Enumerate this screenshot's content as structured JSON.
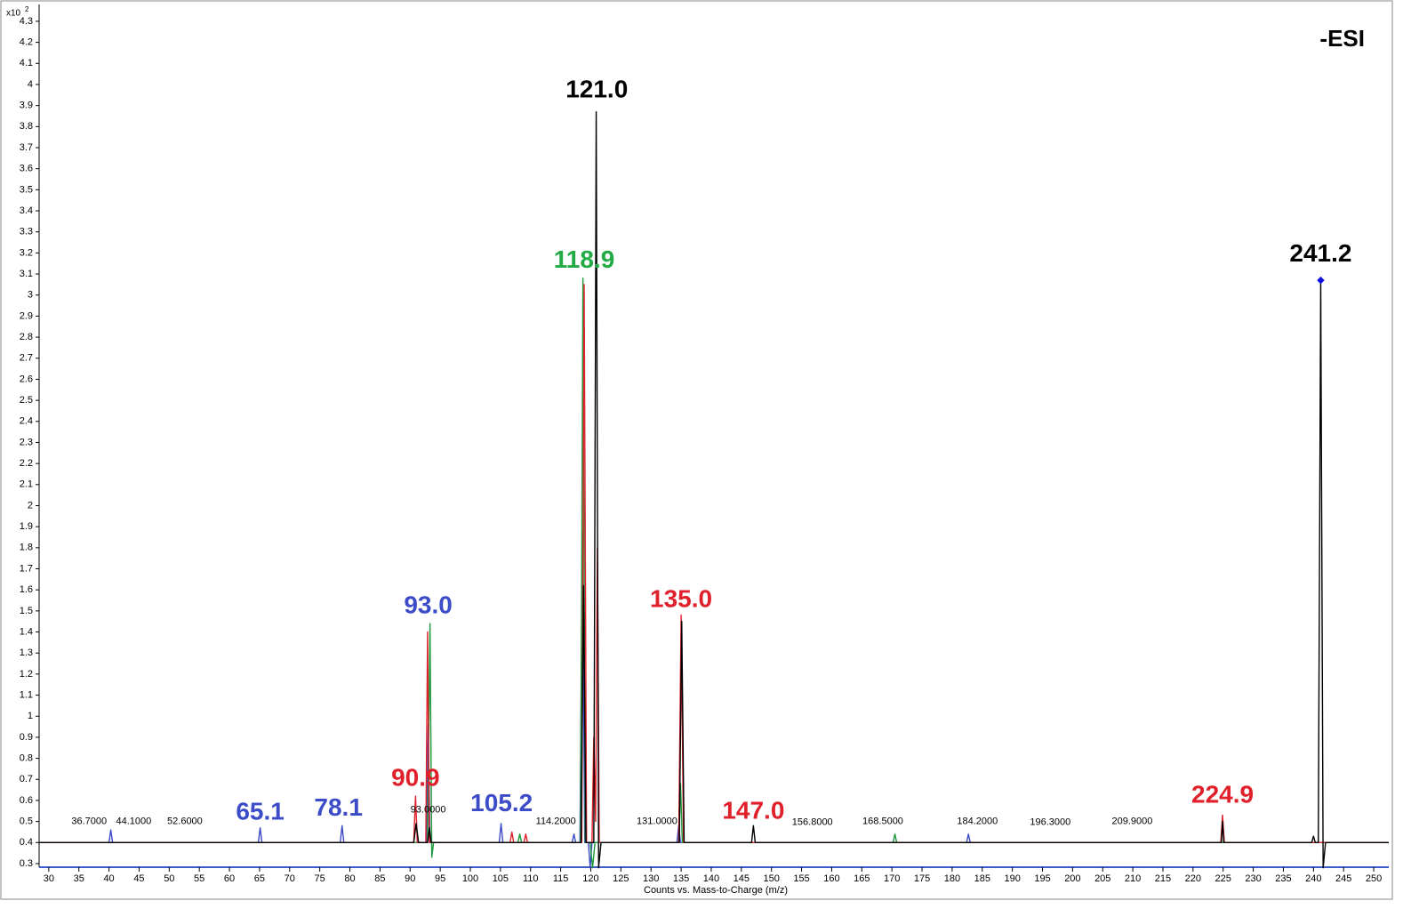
{
  "chart_data": {
    "type": "line",
    "x_label": "Counts vs. Mass-to-Charge (m/z)",
    "y_scale_base": "x10",
    "y_scale_exponent": "2",
    "mode_label": "-ESI",
    "xlim": [
      28.4,
      252.5
    ],
    "ylim": [
      0.283,
      4.38
    ],
    "xticks": [
      30,
      35,
      40,
      45,
      50,
      55,
      60,
      65,
      70,
      75,
      80,
      85,
      90,
      95,
      100,
      105,
      110,
      115,
      120,
      125,
      130,
      135,
      140,
      145,
      150,
      155,
      160,
      165,
      170,
      175,
      180,
      185,
      190,
      195,
      200,
      205,
      210,
      215,
      220,
      225,
      230,
      235,
      240,
      245,
      250
    ],
    "yticks": [
      0.3,
      0.4,
      0.5,
      0.6,
      0.7,
      0.8,
      0.9,
      1,
      1.1,
      1.2,
      1.3,
      1.4,
      1.5,
      1.6,
      1.7,
      1.8,
      1.9,
      2,
      2.1,
      2.2,
      2.3,
      2.4,
      2.5,
      2.6,
      2.7,
      2.8,
      2.9,
      3,
      3.1,
      3.2,
      3.3,
      3.4,
      3.5,
      3.6,
      3.7,
      3.8,
      3.9,
      4,
      4.1,
      4.2,
      4.3
    ],
    "series": [
      {
        "color": "#3c4bc8",
        "x": [
          28.5,
          40,
          40.3,
          40.6,
          64.8,
          65.1,
          65.4,
          78.4,
          78.7,
          79,
          92.7,
          93,
          93.3,
          104.8,
          105.1,
          105.4,
          116.9,
          117.2,
          117.5,
          118.2,
          118.6,
          119,
          119.6,
          119.9,
          120.2,
          134.3,
          134.6,
          134.9,
          182.4,
          182.7,
          183,
          252.5
        ],
        "values": [
          0.4,
          0.4,
          0.46,
          0.4,
          0.4,
          0.47,
          0.4,
          0.4,
          0.48,
          0.4,
          0.4,
          0.96,
          0.4,
          0.4,
          0.49,
          0.4,
          0.4,
          0.44,
          0.4,
          0.4,
          1.87,
          0.4,
          0.4,
          0.28,
          0.4,
          0.4,
          0.48,
          0.4,
          0.4,
          0.44,
          0.4,
          0.4
        ]
      },
      {
        "color": "#1e9a3c",
        "x": [
          28.5,
          92.9,
          93.3,
          93.6,
          93.9,
          107.9,
          108.2,
          108.5,
          118.3,
          118.7,
          119.1,
          119.9,
          120.3,
          120.7,
          134.6,
          134.9,
          135.2,
          170.2,
          170.5,
          170.8,
          252.5
        ],
        "values": [
          0.4,
          0.4,
          1.44,
          0.33,
          0.4,
          0.4,
          0.44,
          0.4,
          0.4,
          3.08,
          0.4,
          0.4,
          0.28,
          0.4,
          0.4,
          0.68,
          0.4,
          0.4,
          0.44,
          0.4,
          0.4
        ]
      },
      {
        "color": "#e0202a",
        "x": [
          28.5,
          90.6,
          90.9,
          91.2,
          92.6,
          92.9,
          93.2,
          106.6,
          106.9,
          107.2,
          108.9,
          109.2,
          109.5,
          118.5,
          118.9,
          119.3,
          120.2,
          120.5,
          120.8,
          121.1,
          121.4,
          134.6,
          135,
          135.4,
          224.6,
          224.9,
          225.2,
          252.5
        ],
        "values": [
          0.4,
          0.4,
          0.62,
          0.4,
          0.4,
          1.4,
          0.4,
          0.4,
          0.45,
          0.4,
          0.4,
          0.44,
          0.4,
          0.4,
          3.05,
          0.4,
          0.4,
          0.9,
          0.5,
          1.8,
          0.4,
          0.4,
          1.48,
          0.4,
          0.4,
          0.53,
          0.4,
          0.4
        ]
      },
      {
        "color": "#000000",
        "x": [
          28.5,
          90.6,
          91,
          91.4,
          92.9,
          93.2,
          93.5,
          118.4,
          118.8,
          119.2,
          120.5,
          120.9,
          121.3,
          121.7,
          134.7,
          135.1,
          135.5,
          146.7,
          147,
          147.3,
          224.7,
          224.9,
          225.1,
          239.7,
          240,
          240.3,
          240.8,
          241.2,
          241.6,
          242,
          252.5
        ],
        "values": [
          0.4,
          0.4,
          0.49,
          0.4,
          0.4,
          0.47,
          0.4,
          0.4,
          1.62,
          0.4,
          0.4,
          3.87,
          0.28,
          0.4,
          0.4,
          1.45,
          0.4,
          0.4,
          0.48,
          0.4,
          0.4,
          0.5,
          0.4,
          0.4,
          0.43,
          0.4,
          0.4,
          3.08,
          0.28,
          0.4,
          0.4
        ]
      }
    ],
    "precursor": {
      "x": 241.2,
      "y": 3.07,
      "color": "#1010e0"
    },
    "peak_labels": [
      {
        "x": 121.0,
        "y": 3.97,
        "label": "121.0",
        "color": "#000000"
      },
      {
        "x": 118.9,
        "y": 3.16,
        "label": "118.9",
        "color": "#22aa44"
      },
      {
        "x": 241.2,
        "y": 3.19,
        "label": "241.2",
        "color": "#000000"
      },
      {
        "x": 93.0,
        "y": 1.52,
        "label": "93.0",
        "color": "#3c4bc8"
      },
      {
        "x": 135.0,
        "y": 1.55,
        "label": "135.0",
        "color": "#e0202a"
      },
      {
        "x": 90.9,
        "y": 0.7,
        "label": "90.9",
        "color": "#e0202a"
      },
      {
        "x": 65.1,
        "y": 0.54,
        "label": "65.1",
        "color": "#3c4bc8"
      },
      {
        "x": 78.1,
        "y": 0.56,
        "label": "78.1",
        "color": "#3c4bc8"
      },
      {
        "x": 105.2,
        "y": 0.58,
        "label": "105.2",
        "color": "#3c4bc8"
      },
      {
        "x": 147.0,
        "y": 0.545,
        "label": "147.0",
        "color": "#e0202a"
      },
      {
        "x": 224.9,
        "y": 0.62,
        "label": "224.9",
        "color": "#e0202a"
      }
    ],
    "small_labels": [
      {
        "x": 36.7,
        "y": 0.5,
        "label": "36.7000"
      },
      {
        "x": 44.1,
        "y": 0.5,
        "label": "44.1000"
      },
      {
        "x": 52.6,
        "y": 0.5,
        "label": "52.6000"
      },
      {
        "x": 93.0,
        "y": 0.555,
        "label": "93.0000"
      },
      {
        "x": 114.2,
        "y": 0.5,
        "label": "114.2000"
      },
      {
        "x": 131.0,
        "y": 0.5,
        "label": "131.0000"
      },
      {
        "x": 156.8,
        "y": 0.495,
        "label": "156.8000"
      },
      {
        "x": 168.5,
        "y": 0.5,
        "label": "168.5000"
      },
      {
        "x": 184.2,
        "y": 0.5,
        "label": "184.2000"
      },
      {
        "x": 196.3,
        "y": 0.495,
        "label": "196.3000"
      },
      {
        "x": 209.9,
        "y": 0.5,
        "label": "209.9000"
      }
    ]
  }
}
